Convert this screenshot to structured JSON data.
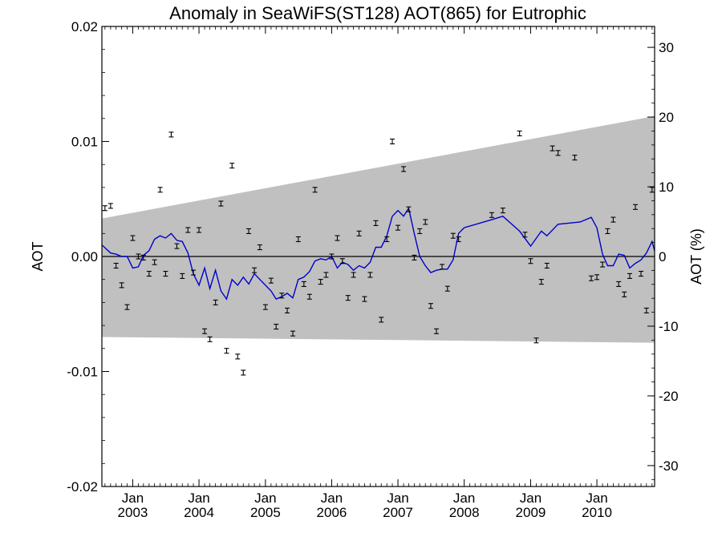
{
  "chart_data": {
    "type": "scatter",
    "title": "Anomaly in SeaWiFS(ST128) AOT(865) for Eutrophic",
    "ylabel_left": "AOT",
    "ylabel_right": "AOT (%)",
    "xlabel": "",
    "ylim": [
      -0.02,
      0.02
    ],
    "ylim_right": [
      -33,
      33
    ],
    "xlim": [
      "2002-07-15",
      "2010-11-15"
    ],
    "grid": false,
    "left_ticks": [
      "0.02",
      "0.01",
      "0.00",
      "-0.01",
      "-0.02"
    ],
    "left_tick_values": [
      0.02,
      0.01,
      0.0,
      -0.01,
      -0.02
    ],
    "right_ticks": [
      "30",
      "20",
      "10",
      "0",
      "-10",
      "-20",
      "-30"
    ],
    "right_tick_values": [
      30,
      20,
      10,
      0,
      -10,
      -20,
      -30
    ],
    "x_ticks": [
      {
        "month": "Jan",
        "year": "2003",
        "date": "2003-01-01"
      },
      {
        "month": "Jan",
        "year": "2004",
        "date": "2004-01-01"
      },
      {
        "month": "Jan",
        "year": "2005",
        "date": "2005-01-01"
      },
      {
        "month": "Jan",
        "year": "2006",
        "date": "2006-01-01"
      },
      {
        "month": "Jan",
        "year": "2007",
        "date": "2007-01-01"
      },
      {
        "month": "Jan",
        "year": "2008",
        "date": "2008-01-01"
      },
      {
        "month": "Jan",
        "year": "2009",
        "date": "2009-01-01"
      },
      {
        "month": "Jan",
        "year": "2010",
        "date": "2010-01-01"
      }
    ],
    "zero_line": 0.0,
    "band": {
      "color": "#c0c0c0",
      "start_date": "2002-07-15",
      "end_date": "2010-11-15",
      "upper": [
        0.0033,
        0.0122
      ],
      "lower": [
        -0.007,
        -0.0075
      ]
    },
    "series": [
      {
        "kind": "monthly_anomaly_points",
        "color": "#000000",
        "points": [
          [
            "2002-08-01",
            0.0042
          ],
          [
            "2002-09-01",
            0.0044
          ],
          [
            "2002-10-01",
            -0.0008
          ],
          [
            "2002-11-01",
            -0.0025
          ],
          [
            "2002-12-01",
            -0.0044
          ],
          [
            "2003-01-01",
            0.0016
          ],
          [
            "2003-02-01",
            0.0
          ],
          [
            "2003-03-01",
            -0.0001
          ],
          [
            "2003-04-01",
            -0.0015
          ],
          [
            "2003-05-01",
            -0.0005
          ],
          [
            "2003-06-01",
            0.0058
          ],
          [
            "2003-07-01",
            -0.0015
          ],
          [
            "2003-08-01",
            0.0106
          ],
          [
            "2003-09-01",
            0.0009
          ],
          [
            "2003-10-01",
            -0.0017
          ],
          [
            "2003-11-01",
            0.0023
          ],
          [
            "2003-12-01",
            -0.0014
          ],
          [
            "2004-01-01",
            0.0023
          ],
          [
            "2004-02-01",
            -0.0065
          ],
          [
            "2004-03-01",
            -0.0072
          ],
          [
            "2004-04-01",
            -0.004
          ],
          [
            "2004-05-01",
            0.0046
          ],
          [
            "2004-06-01",
            -0.0082
          ],
          [
            "2004-07-01",
            0.0079
          ],
          [
            "2004-08-01",
            -0.0087
          ],
          [
            "2004-09-01",
            -0.0101
          ],
          [
            "2004-10-01",
            0.0022
          ],
          [
            "2004-11-01",
            -0.0012
          ],
          [
            "2004-12-01",
            0.0008
          ],
          [
            "2005-01-01",
            -0.0044
          ],
          [
            "2005-02-01",
            -0.0021
          ],
          [
            "2005-03-01",
            -0.0061
          ],
          [
            "2005-04-01",
            -0.0034
          ],
          [
            "2005-05-01",
            -0.0047
          ],
          [
            "2005-06-01",
            -0.0067
          ],
          [
            "2005-07-01",
            0.0015
          ],
          [
            "2005-08-01",
            -0.0024
          ],
          [
            "2005-09-01",
            -0.0035
          ],
          [
            "2005-10-01",
            0.0058
          ],
          [
            "2005-11-01",
            -0.0022
          ],
          [
            "2005-12-01",
            -0.0016
          ],
          [
            "2006-01-01",
            0.0
          ],
          [
            "2006-02-01",
            0.0016
          ],
          [
            "2006-03-01",
            -0.0004
          ],
          [
            "2006-04-01",
            -0.0036
          ],
          [
            "2006-05-01",
            -0.0016
          ],
          [
            "2006-06-01",
            0.002
          ],
          [
            "2006-07-01",
            -0.0037
          ],
          [
            "2006-08-01",
            -0.0016
          ],
          [
            "2006-09-01",
            0.0029
          ],
          [
            "2006-10-01",
            -0.0055
          ],
          [
            "2006-11-01",
            0.0015
          ],
          [
            "2006-12-01",
            0.01
          ],
          [
            "2007-01-01",
            0.0025
          ],
          [
            "2007-02-01",
            0.0076
          ],
          [
            "2007-03-01",
            0.0041
          ],
          [
            "2007-04-01",
            -0.0001
          ],
          [
            "2007-05-01",
            0.0022
          ],
          [
            "2007-06-01",
            0.003
          ],
          [
            "2007-07-01",
            -0.0043
          ],
          [
            "2007-08-01",
            -0.0065
          ],
          [
            "2007-09-01",
            -0.0009
          ],
          [
            "2007-10-01",
            -0.0028
          ],
          [
            "2007-11-01",
            0.0018
          ],
          [
            "2007-12-01",
            0.0015
          ],
          [
            "2008-06-01",
            0.0036
          ],
          [
            "2008-08-01",
            0.004
          ],
          [
            "2008-11-01",
            0.0107
          ],
          [
            "2008-12-01",
            0.0019
          ],
          [
            "2009-01-01",
            -0.0004
          ],
          [
            "2009-02-01",
            -0.0073
          ],
          [
            "2009-03-01",
            -0.0022
          ],
          [
            "2009-04-01",
            -0.0008
          ],
          [
            "2009-05-01",
            0.0094
          ],
          [
            "2009-06-01",
            0.009
          ],
          [
            "2009-09-01",
            0.0086
          ],
          [
            "2009-12-01",
            -0.0019
          ],
          [
            "2010-01-01",
            -0.0018
          ],
          [
            "2010-02-01",
            -0.0007
          ],
          [
            "2010-03-01",
            0.0022
          ],
          [
            "2010-04-01",
            0.0032
          ],
          [
            "2010-05-01",
            -0.0024
          ],
          [
            "2010-06-01",
            -0.0033
          ],
          [
            "2010-07-01",
            -0.0017
          ],
          [
            "2010-08-01",
            0.0043
          ],
          [
            "2010-09-01",
            -0.0015
          ],
          [
            "2010-10-01",
            -0.0047
          ],
          [
            "2010-11-01",
            0.0058
          ]
        ]
      },
      {
        "kind": "running_mean_line",
        "color": "#0000cc",
        "points": [
          [
            "2002-07-15",
            0.001
          ],
          [
            "2002-09-01",
            0.0003
          ],
          [
            "2002-10-01",
            0.0002
          ],
          [
            "2002-11-01",
            0.0
          ],
          [
            "2002-12-01",
            0.0
          ],
          [
            "2003-01-01",
            -0.001
          ],
          [
            "2003-02-01",
            -0.0009
          ],
          [
            "2003-03-01",
            0.0001
          ],
          [
            "2003-04-01",
            0.0005
          ],
          [
            "2003-05-01",
            0.0015
          ],
          [
            "2003-06-01",
            0.0018
          ],
          [
            "2003-07-01",
            0.0016
          ],
          [
            "2003-08-01",
            0.002
          ],
          [
            "2003-09-01",
            0.0014
          ],
          [
            "2003-10-01",
            0.0013
          ],
          [
            "2003-11-01",
            0.0003
          ],
          [
            "2003-12-01",
            -0.0015
          ],
          [
            "2004-01-01",
            -0.0025
          ],
          [
            "2004-02-01",
            -0.001
          ],
          [
            "2004-03-01",
            -0.0028
          ],
          [
            "2004-04-01",
            -0.0012
          ],
          [
            "2004-05-01",
            -0.003
          ],
          [
            "2004-06-01",
            -0.0037
          ],
          [
            "2004-07-01",
            -0.002
          ],
          [
            "2004-08-01",
            -0.0025
          ],
          [
            "2004-09-01",
            -0.0018
          ],
          [
            "2004-10-01",
            -0.0024
          ],
          [
            "2004-11-01",
            -0.0015
          ],
          [
            "2004-12-01",
            -0.002
          ],
          [
            "2005-01-01",
            -0.0025
          ],
          [
            "2005-02-01",
            -0.003
          ],
          [
            "2005-03-01",
            -0.0037
          ],
          [
            "2005-04-01",
            -0.0035
          ],
          [
            "2005-05-01",
            -0.0032
          ],
          [
            "2005-06-01",
            -0.0036
          ],
          [
            "2005-07-01",
            -0.002
          ],
          [
            "2005-08-01",
            -0.0018
          ],
          [
            "2005-09-01",
            -0.0013
          ],
          [
            "2005-10-01",
            -0.0004
          ],
          [
            "2005-11-01",
            -0.0002
          ],
          [
            "2005-12-01",
            -0.0003
          ],
          [
            "2006-01-01",
            0.0
          ],
          [
            "2006-02-01",
            -0.001
          ],
          [
            "2006-03-01",
            -0.0005
          ],
          [
            "2006-04-01",
            -0.0007
          ],
          [
            "2006-05-01",
            -0.0012
          ],
          [
            "2006-06-01",
            -0.0008
          ],
          [
            "2006-07-01",
            -0.001
          ],
          [
            "2006-08-01",
            -0.0005
          ],
          [
            "2006-09-01",
            0.0008
          ],
          [
            "2006-10-01",
            0.0008
          ],
          [
            "2006-11-01",
            0.0018
          ],
          [
            "2006-12-01",
            0.0035
          ],
          [
            "2007-01-01",
            0.004
          ],
          [
            "2007-02-01",
            0.0035
          ],
          [
            "2007-03-01",
            0.0042
          ],
          [
            "2007-04-01",
            0.002
          ],
          [
            "2007-05-01",
            0.0
          ],
          [
            "2007-06-01",
            -0.0008
          ],
          [
            "2007-07-01",
            -0.0014
          ],
          [
            "2007-08-01",
            -0.0012
          ],
          [
            "2007-09-01",
            -0.0011
          ],
          [
            "2007-10-01",
            -0.0011
          ],
          [
            "2007-11-01",
            -0.0003
          ],
          [
            "2007-12-01",
            0.002
          ],
          [
            "2008-01-01",
            0.0025
          ],
          [
            "2008-06-01",
            0.0032
          ],
          [
            "2008-08-01",
            0.0035
          ],
          [
            "2008-11-01",
            0.0022
          ],
          [
            "2009-01-01",
            0.0009
          ],
          [
            "2009-03-01",
            0.0022
          ],
          [
            "2009-04-01",
            0.0018
          ],
          [
            "2009-06-01",
            0.0028
          ],
          [
            "2009-10-01",
            0.003
          ],
          [
            "2009-12-01",
            0.0034
          ],
          [
            "2010-01-01",
            0.0025
          ],
          [
            "2010-02-01",
            0.0002
          ],
          [
            "2010-03-01",
            -0.0008
          ],
          [
            "2010-04-01",
            -0.0008
          ],
          [
            "2010-05-01",
            0.0002
          ],
          [
            "2010-06-01",
            0.0001
          ],
          [
            "2010-07-01",
            -0.001
          ],
          [
            "2010-08-01",
            -0.0006
          ],
          [
            "2010-09-01",
            -0.0003
          ],
          [
            "2010-10-01",
            0.0003
          ],
          [
            "2010-11-01",
            0.0013
          ],
          [
            "2010-11-15",
            0.0005
          ]
        ]
      }
    ]
  }
}
